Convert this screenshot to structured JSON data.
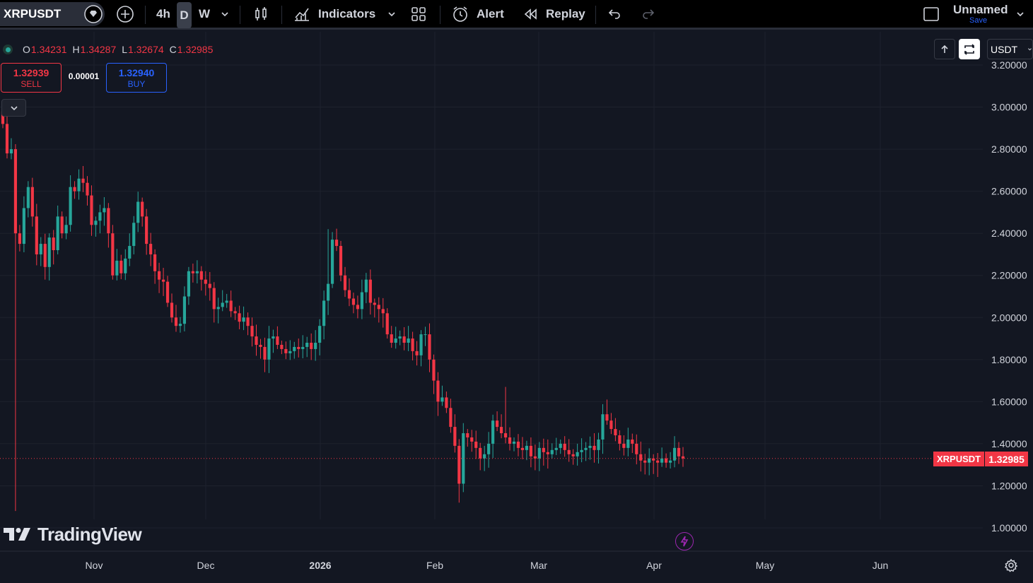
{
  "toolbar": {
    "symbol": "XRPUSDT",
    "intervals": [
      "4h",
      "D",
      "W"
    ],
    "active_interval": "D",
    "indicators_label": "Indicators",
    "alert_label": "Alert",
    "replay_label": "Replay",
    "layout_name": "Unnamed",
    "layout_save": "Save"
  },
  "legend": {
    "o_label": "O",
    "o_value": "1.34231",
    "h_label": "H",
    "h_value": "1.34287",
    "l_label": "L",
    "l_value": "1.32674",
    "c_label": "C",
    "c_value": "1.32985"
  },
  "trade": {
    "sell_price": "1.32939",
    "sell_label": "SELL",
    "spread": "0.00001",
    "buy_price": "1.32940",
    "buy_label": "BUY"
  },
  "pane": {
    "currency": "USDT"
  },
  "colors": {
    "up": "#26a69a",
    "down": "#f23645",
    "background": "#131722",
    "grid": "#1e222d",
    "accent": "#2962ff"
  },
  "chart_data": {
    "type": "candlestick",
    "symbol": "XRPUSDT",
    "interval": "D",
    "last_price": "1.32985",
    "last_price_label": "XRPUSDT",
    "y_ticks": [
      "3.20000",
      "3.00000",
      "2.80000",
      "2.60000",
      "2.40000",
      "2.20000",
      "2.00000",
      "1.80000",
      "1.60000",
      "1.40000",
      "1.20000",
      "1.00000"
    ],
    "x_ticks": [
      "Nov",
      "Dec",
      "2026",
      "Feb",
      "Mar",
      "Apr",
      "May",
      "Jun"
    ],
    "ylim": [
      0.93,
      3.25
    ],
    "grid": true,
    "candle_span_days": 161,
    "closes": [
      2.92,
      2.78,
      2.8,
      2.4,
      2.35,
      2.52,
      2.62,
      2.48,
      2.3,
      2.35,
      2.24,
      2.38,
      2.32,
      2.48,
      2.4,
      2.44,
      2.62,
      2.6,
      2.66,
      2.64,
      2.58,
      2.44,
      2.46,
      2.5,
      2.52,
      2.4,
      2.2,
      2.27,
      2.21,
      2.28,
      2.34,
      2.45,
      2.55,
      2.48,
      2.35,
      2.3,
      2.22,
      2.18,
      2.17,
      2.07,
      2.0,
      1.96,
      1.97,
      2.1,
      2.22,
      2.21,
      2.22,
      2.18,
      2.16,
      2.14,
      2.04,
      2.05,
      2.07,
      2.08,
      2.03,
      2.02,
      1.98,
      2.0,
      1.96,
      1.91,
      1.87,
      1.86,
      1.8,
      1.9,
      1.91,
      1.87,
      1.85,
      1.83,
      1.84,
      1.86,
      1.85,
      1.86,
      1.88,
      1.85,
      1.88,
      1.96,
      2.08,
      2.16,
      2.37,
      2.34,
      2.2,
      2.13,
      2.09,
      2.06,
      2.04,
      2.12,
      2.18,
      2.07,
      2.06,
      2.04,
      2.02,
      1.92,
      1.88,
      1.9,
      1.91,
      1.88,
      1.9,
      1.84,
      1.82,
      1.92,
      1.92,
      1.8,
      1.7,
      1.6,
      1.62,
      1.57,
      1.48,
      1.39,
      1.21,
      1.45,
      1.43,
      1.41,
      1.38,
      1.33,
      1.35,
      1.4,
      1.51,
      1.48,
      1.45,
      1.43,
      1.4,
      1.41,
      1.38,
      1.37,
      1.39,
      1.34,
      1.33,
      1.38,
      1.36,
      1.35,
      1.37,
      1.38,
      1.4,
      1.37,
      1.35,
      1.34,
      1.36,
      1.37,
      1.38,
      1.39,
      1.37,
      1.42,
      1.54,
      1.51,
      1.47,
      1.44,
      1.4,
      1.38,
      1.42,
      1.4,
      1.35,
      1.32,
      1.31,
      1.33,
      1.32,
      1.31,
      1.33,
      1.31,
      1.32,
      1.38,
      1.34,
      1.33
    ]
  }
}
